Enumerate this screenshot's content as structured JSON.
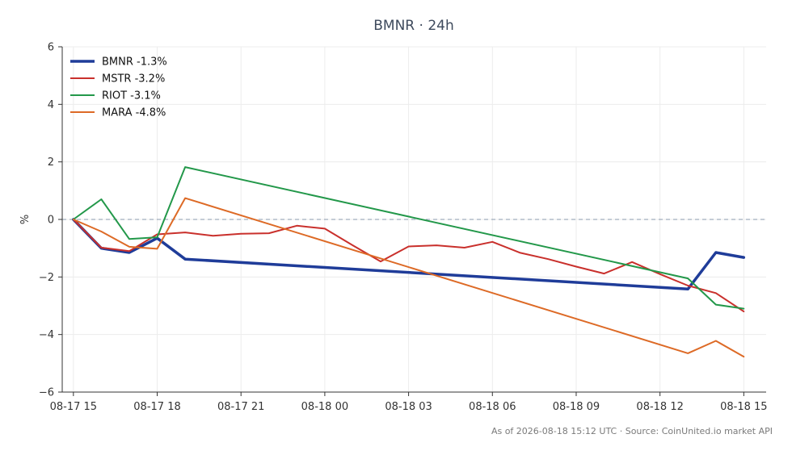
{
  "chart_data": {
    "type": "line",
    "title": "BMNR · 24h",
    "xlabel": "",
    "ylabel": "%",
    "xlim": [
      -0.4,
      24.8
    ],
    "ylim": [
      -6,
      6
    ],
    "x_ticks": [
      {
        "value": 0,
        "label": "08-17 15"
      },
      {
        "value": 3,
        "label": "08-17 18"
      },
      {
        "value": 6,
        "label": "08-17 21"
      },
      {
        "value": 9,
        "label": "08-18 00"
      },
      {
        "value": 12,
        "label": "08-18 03"
      },
      {
        "value": 15,
        "label": "08-18 06"
      },
      {
        "value": 18,
        "label": "08-18 09"
      },
      {
        "value": 21,
        "label": "08-18 12"
      },
      {
        "value": 24,
        "label": "08-18 15"
      }
    ],
    "y_ticks": [
      {
        "value": -6,
        "label": "−6"
      },
      {
        "value": -4,
        "label": "−4"
      },
      {
        "value": -2,
        "label": "−2"
      },
      {
        "value": 0,
        "label": "0"
      },
      {
        "value": 2,
        "label": "2"
      },
      {
        "value": 4,
        "label": "4"
      },
      {
        "value": 6,
        "label": "6"
      }
    ],
    "grid": true,
    "zero_line": true,
    "legend": "top-left",
    "series": [
      {
        "name": "BMNR -1.3%",
        "color": "#1f3c99",
        "width": 3.5,
        "points": [
          [
            0,
            0
          ],
          [
            1,
            -1.0
          ],
          [
            2,
            -1.15
          ],
          [
            3,
            -0.65
          ],
          [
            4,
            -1.38
          ],
          [
            22,
            -2.42
          ],
          [
            23,
            -1.15
          ],
          [
            24,
            -1.32
          ]
        ]
      },
      {
        "name": "MSTR -3.2%",
        "color": "#c9302c",
        "width": 2,
        "points": [
          [
            0,
            0
          ],
          [
            1,
            -0.98
          ],
          [
            2,
            -1.1
          ],
          [
            3,
            -0.52
          ],
          [
            4,
            -0.45
          ],
          [
            5,
            -0.57
          ],
          [
            6,
            -0.5
          ],
          [
            7,
            -0.48
          ],
          [
            8,
            -0.22
          ],
          [
            9,
            -0.32
          ],
          [
            10,
            -0.9
          ],
          [
            11,
            -1.46
          ],
          [
            12,
            -0.94
          ],
          [
            13,
            -0.9
          ],
          [
            14,
            -0.98
          ],
          [
            15,
            -0.78
          ],
          [
            16,
            -1.16
          ],
          [
            17,
            -1.38
          ],
          [
            18,
            -1.64
          ],
          [
            19,
            -1.88
          ],
          [
            20,
            -1.48
          ],
          [
            21,
            -1.9
          ],
          [
            22,
            -2.3
          ],
          [
            23,
            -2.56
          ],
          [
            24,
            -3.2
          ]
        ]
      },
      {
        "name": "RIOT -3.1%",
        "color": "#23984a",
        "width": 2,
        "points": [
          [
            0,
            0
          ],
          [
            1,
            0.7
          ],
          [
            2,
            -0.68
          ],
          [
            3,
            -0.62
          ],
          [
            4,
            1.82
          ],
          [
            22,
            -2.05
          ],
          [
            23,
            -2.96
          ],
          [
            24,
            -3.1
          ]
        ]
      },
      {
        "name": "MARA -4.8%",
        "color": "#dd6a26",
        "width": 2,
        "points": [
          [
            0,
            0
          ],
          [
            1,
            -0.42
          ],
          [
            2,
            -0.95
          ],
          [
            3,
            -1.02
          ],
          [
            4,
            0.74
          ],
          [
            22,
            -4.65
          ],
          [
            23,
            -4.22
          ],
          [
            24,
            -4.77
          ]
        ]
      }
    ]
  },
  "footer": "As of 2026-08-18 15:12 UTC · Source: CoinUnited.io market API"
}
